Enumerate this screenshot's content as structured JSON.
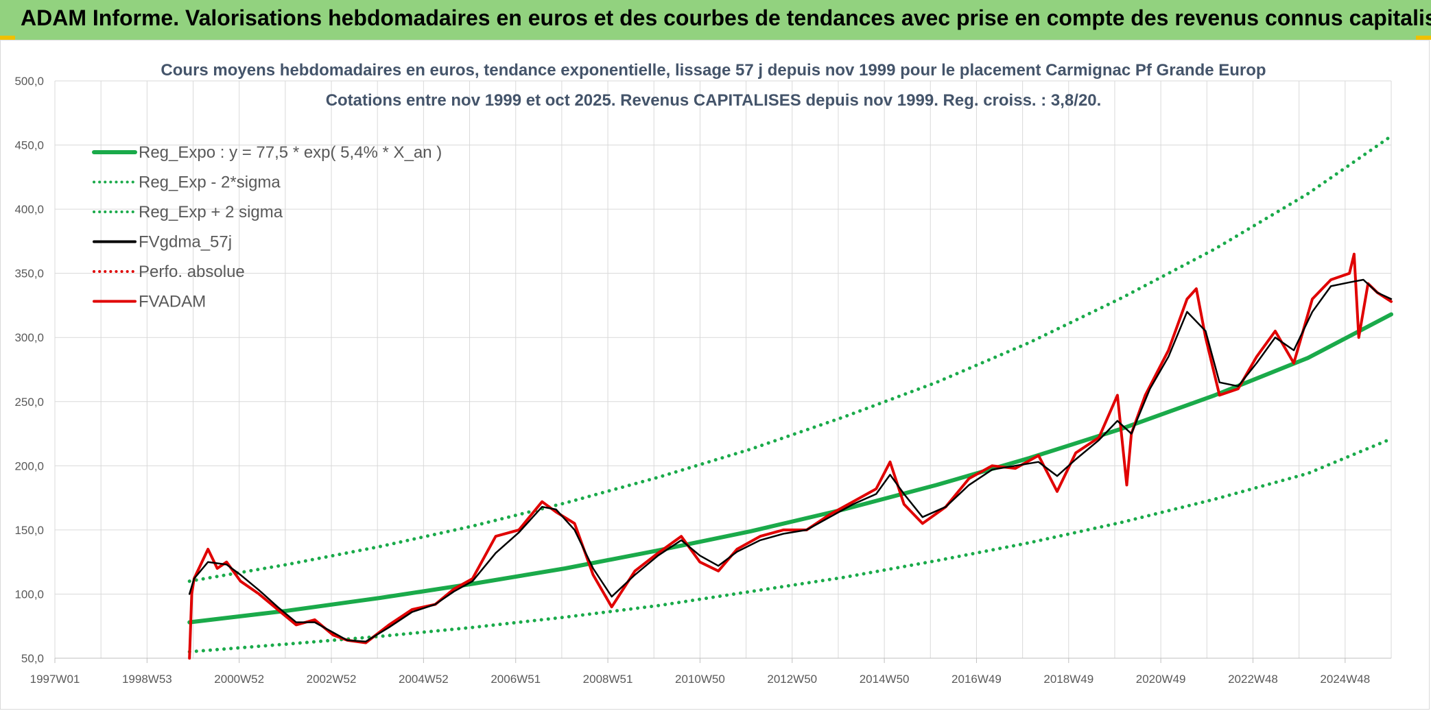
{
  "header": {
    "title": "ADAM Informe. Valorisations hebdomadaires en euros et des courbes de tendances avec prise en compte des revenus connus capitalisés"
  },
  "chart_data": {
    "type": "line",
    "title": "Cours moyens hebdomadaires en euros, tendance exponentielle, lissage 57 j depuis nov 1999 pour le placement Carmignac Pf Grande Europ",
    "subtitle": "Cotations entre nov 1999 et oct 2025. Revenus CAPITALISES depuis nov 1999. Reg. croiss. : 3,8/20.",
    "xlabel": "",
    "ylabel": "",
    "ylim": [
      50,
      500
    ],
    "xlim": [
      1997.0,
      2025.8
    ],
    "y_ticks": [
      "50,0",
      "100,0",
      "150,0",
      "200,0",
      "250,0",
      "300,0",
      "350,0",
      "400,0",
      "450,0",
      "500,0"
    ],
    "x_ticks": [
      "1997W01",
      "1998W53",
      "2000W52",
      "2002W52",
      "2004W52",
      "2006W51",
      "2008W51",
      "2010W50",
      "2012W50",
      "2014W50",
      "2016W49",
      "2018W49",
      "2020W49",
      "2022W48",
      "2024W48"
    ],
    "grid": true,
    "legend_position": "top-left",
    "legend": [
      {
        "name": "Reg_Expo : y = 77,5 * exp( 5,4% *  X_an )",
        "color": "#1aaa4a",
        "style": "solid"
      },
      {
        "name": "Reg_Exp - 2*sigma",
        "color": "#1aaa4a",
        "style": "dotted"
      },
      {
        "name": "Reg_Exp + 2 sigma",
        "color": "#1aaa4a",
        "style": "dotted"
      },
      {
        "name": "FVgdma_57j",
        "color": "#000000",
        "style": "solid"
      },
      {
        "name": "Perfo. absolue",
        "color": "#e00000",
        "style": "dotted"
      },
      {
        "name": "FVADAM",
        "color": "#e00000",
        "style": "solid"
      }
    ],
    "series": [
      {
        "name": "Reg_Expo : y = 77,5 * exp( 5,4% *  X_an )",
        "color": "#1aaa4a",
        "x": [
          1999.9,
          2002.0,
          2004.0,
          2006.0,
          2008.0,
          2010.0,
          2012.0,
          2014.0,
          2016.0,
          2018.0,
          2020.0,
          2022.0,
          2024.0,
          2025.8
        ],
        "values": [
          78,
          87,
          97,
          108,
          120,
          134,
          149,
          166,
          185,
          206,
          229,
          255,
          284,
          318
        ]
      },
      {
        "name": "Reg_Exp - 2*sigma",
        "color": "#1aaa4a",
        "x": [
          1999.9,
          2002.0,
          2004.0,
          2006.0,
          2008.0,
          2010.0,
          2012.0,
          2014.0,
          2016.0,
          2018.0,
          2020.0,
          2022.0,
          2024.0,
          2025.8
        ],
        "values": [
          55,
          61,
          67,
          74,
          82,
          91,
          102,
          113,
          126,
          140,
          156,
          174,
          194,
          221
        ]
      },
      {
        "name": "Reg_Exp + 2 sigma",
        "color": "#1aaa4a",
        "x": [
          1999.9,
          2002.0,
          2004.0,
          2006.0,
          2008.0,
          2010.0,
          2012.0,
          2014.0,
          2016.0,
          2018.0,
          2020.0,
          2022.0,
          2024.0,
          2025.8
        ],
        "values": [
          110,
          123,
          137,
          153,
          171,
          191,
          213,
          238,
          265,
          296,
          331,
          369,
          412,
          457
        ]
      },
      {
        "name": "FVgdma_57j",
        "color": "#000000",
        "x": [
          1999.9,
          2000.0,
          2000.3,
          2000.7,
          2001.0,
          2001.4,
          2001.8,
          2002.2,
          2002.6,
          2003.0,
          2003.3,
          2003.7,
          2004.2,
          2004.7,
          2005.2,
          2005.6,
          2006.0,
          2006.5,
          2007.0,
          2007.5,
          2007.8,
          2008.2,
          2008.6,
          2009.0,
          2009.5,
          2010.0,
          2010.5,
          2010.9,
          2011.3,
          2011.7,
          2012.2,
          2012.7,
          2013.2,
          2013.7,
          2014.2,
          2014.7,
          2015.0,
          2015.3,
          2015.7,
          2016.2,
          2016.7,
          2017.2,
          2017.7,
          2018.2,
          2018.6,
          2019.0,
          2019.5,
          2019.9,
          2020.2,
          2020.6,
          2021.0,
          2021.4,
          2021.8,
          2022.1,
          2022.5,
          2022.9,
          2023.3,
          2023.7,
          2024.1,
          2024.5,
          2024.9,
          2025.2,
          2025.5,
          2025.8
        ],
        "values": [
          100,
          112,
          125,
          123,
          115,
          103,
          90,
          78,
          78,
          70,
          64,
          63,
          74,
          86,
          92,
          102,
          110,
          132,
          148,
          168,
          166,
          150,
          120,
          98,
          115,
          130,
          142,
          130,
          122,
          133,
          142,
          147,
          150,
          160,
          170,
          178,
          193,
          178,
          160,
          168,
          185,
          197,
          200,
          203,
          192,
          205,
          220,
          235,
          225,
          260,
          285,
          320,
          305,
          265,
          262,
          280,
          300,
          290,
          320,
          340,
          343,
          345,
          335,
          330
        ]
      },
      {
        "name": "FVADAM",
        "color": "#e00000",
        "x": [
          1999.9,
          1999.95,
          2000.0,
          2000.3,
          2000.5,
          2000.7,
          2001.0,
          2001.4,
          2001.8,
          2002.2,
          2002.6,
          2003.0,
          2003.3,
          2003.7,
          2004.2,
          2004.7,
          2005.2,
          2005.6,
          2006.0,
          2006.5,
          2007.0,
          2007.5,
          2007.8,
          2008.2,
          2008.6,
          2009.0,
          2009.5,
          2010.0,
          2010.5,
          2010.9,
          2011.3,
          2011.7,
          2012.2,
          2012.7,
          2013.2,
          2013.7,
          2014.2,
          2014.7,
          2015.0,
          2015.3,
          2015.7,
          2016.2,
          2016.7,
          2017.2,
          2017.7,
          2018.2,
          2018.6,
          2019.0,
          2019.5,
          2019.9,
          2020.1,
          2020.2,
          2020.5,
          2021.0,
          2021.4,
          2021.6,
          2021.8,
          2022.1,
          2022.5,
          2022.9,
          2023.3,
          2023.7,
          2024.1,
          2024.5,
          2024.9,
          2025.0,
          2025.1,
          2025.3,
          2025.5,
          2025.8
        ],
        "values": [
          50,
          100,
          112,
          135,
          120,
          125,
          110,
          100,
          88,
          76,
          80,
          68,
          64,
          62,
          76,
          88,
          92,
          104,
          112,
          145,
          150,
          172,
          164,
          155,
          115,
          90,
          118,
          132,
          145,
          125,
          118,
          135,
          145,
          150,
          150,
          162,
          172,
          182,
          203,
          170,
          155,
          168,
          190,
          200,
          198,
          208,
          180,
          210,
          222,
          255,
          185,
          225,
          255,
          290,
          330,
          338,
          300,
          255,
          260,
          285,
          305,
          280,
          330,
          345,
          350,
          365,
          300,
          342,
          335,
          328
        ]
      }
    ]
  }
}
